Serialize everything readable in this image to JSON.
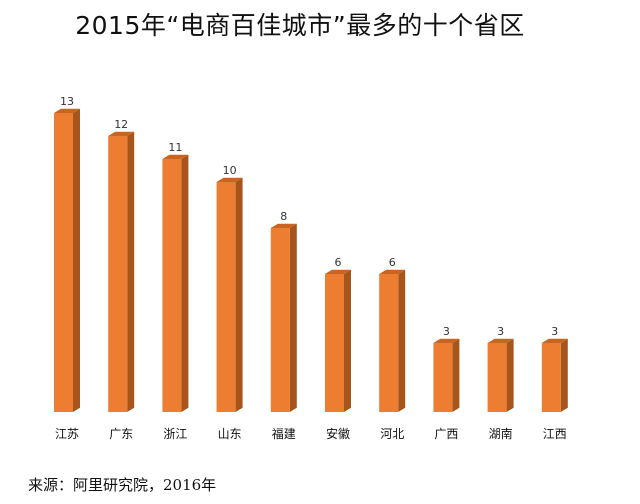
{
  "title": "2015年“电商百佳城市”最多的十个省区",
  "source": "来源：阿里研究院，2016年",
  "colors": {
    "bar_front": "#ED7D31",
    "bar_side": "#A8551B",
    "bar_top": "#C96520"
  },
  "chart_data": {
    "type": "bar",
    "title": "2015年“电商百佳城市”最多的十个省区",
    "categories": [
      "江苏",
      "广东",
      "浙江",
      "山东",
      "福建",
      "安徽",
      "河北",
      "广西",
      "湖南",
      "江西"
    ],
    "values": [
      13,
      12,
      11,
      10,
      8,
      6,
      6,
      3,
      3,
      3
    ],
    "xlabel": "",
    "ylabel": "",
    "ylim": [
      0,
      14
    ],
    "grid": false,
    "legend": "none",
    "data_labels": true
  }
}
